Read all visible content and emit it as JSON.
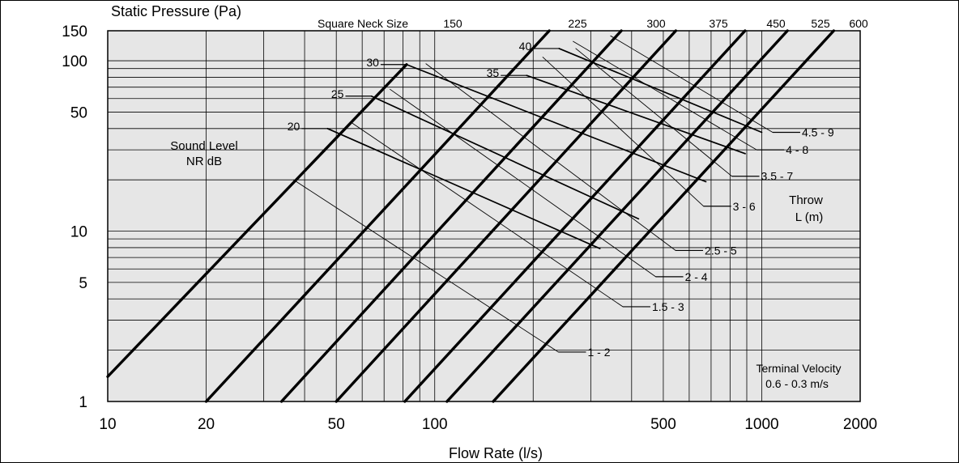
{
  "chart_data": {
    "type": "line",
    "title": "",
    "xlabel": "Flow Rate (l/s)",
    "ylabel": "Static Pressure (Pa)",
    "x_scale": "log",
    "y_scale": "log",
    "xlim": [
      10,
      2000
    ],
    "ylim": [
      1,
      150
    ],
    "grid": true,
    "x_ticks": [
      10,
      20,
      50,
      100,
      500,
      1000,
      2000
    ],
    "y_ticks": [
      1,
      5,
      10,
      50,
      100,
      150
    ],
    "x_gridlines": [
      20,
      30,
      40,
      50,
      60,
      70,
      80,
      90,
      100,
      200,
      300,
      400,
      500,
      600,
      700,
      800,
      900,
      1000
    ],
    "y_gridlines": [
      2,
      3,
      4,
      5,
      6,
      7,
      8,
      9,
      10,
      20,
      30,
      40,
      50,
      60,
      70,
      80,
      90,
      100
    ],
    "plot_background": "#e6e6e6",
    "neck_title": "Square Neck Size",
    "neck_series": [
      {
        "name": "150",
        "points": [
          [
            10,
            1.4
          ],
          [
            82,
            95
          ]
        ]
      },
      {
        "name": "225",
        "points": [
          [
            20,
            1
          ],
          [
            224,
            150
          ]
        ]
      },
      {
        "name": "300",
        "points": [
          [
            34,
            1
          ],
          [
            372,
            150
          ]
        ]
      },
      {
        "name": "375",
        "points": [
          [
            50,
            1
          ],
          [
            546,
            150
          ]
        ]
      },
      {
        "name": "450",
        "points": [
          [
            81,
            1
          ],
          [
            889,
            150
          ]
        ]
      },
      {
        "name": "525",
        "points": [
          [
            109,
            1
          ],
          [
            1198,
            150
          ]
        ]
      },
      {
        "name": "600",
        "points": [
          [
            151,
            1
          ],
          [
            1660,
            150
          ]
        ]
      }
    ],
    "sound_level_title": [
      "Sound Level",
      "NR  dB"
    ],
    "sound_level_series": [
      {
        "name": "20",
        "points": [
          [
            47,
            40
          ],
          [
            320,
            7.9
          ]
        ]
      },
      {
        "name": "25",
        "points": [
          [
            64,
            62
          ],
          [
            420,
            11.8
          ]
        ]
      },
      {
        "name": "30",
        "points": [
          [
            82,
            95
          ],
          [
            675,
            19.5
          ]
        ]
      },
      {
        "name": "35",
        "points": [
          [
            191,
            82
          ],
          [
            890,
            28.5
          ]
        ]
      },
      {
        "name": "40",
        "points": [
          [
            240,
            118
          ],
          [
            1000,
            38
          ]
        ]
      }
    ],
    "throw_title": [
      "Throw",
      "L  (m)"
    ],
    "throw_series": [
      {
        "name": "1 - 2",
        "points": [
          [
            37,
            20
          ],
          [
            239,
            1.95
          ]
        ]
      },
      {
        "name": "1.5 - 3",
        "points": [
          [
            56,
            43
          ],
          [
            376,
            3.6
          ]
        ]
      },
      {
        "name": "2 - 4",
        "points": [
          [
            73,
            68
          ],
          [
            474,
            5.4
          ]
        ]
      },
      {
        "name": "2.5 - 5",
        "points": [
          [
            94,
            96
          ],
          [
            545,
            7.7
          ]
        ]
      },
      {
        "name": "3 - 6",
        "points": [
          [
            214,
            105
          ],
          [
            664,
            14
          ]
        ]
      },
      {
        "name": "3.5 - 7",
        "points": [
          [
            270,
            118
          ],
          [
            810,
            21
          ]
        ]
      },
      {
        "name": "4 - 8",
        "points": [
          [
            265,
            130
          ],
          [
            965,
            30
          ]
        ]
      },
      {
        "name": "4.5 - 9",
        "points": [
          [
            345,
            140
          ],
          [
            1080,
            38
          ]
        ]
      }
    ],
    "terminal_velocity": [
      "Terminal Velocity",
      "0.6 - 0.3 m/s"
    ]
  }
}
